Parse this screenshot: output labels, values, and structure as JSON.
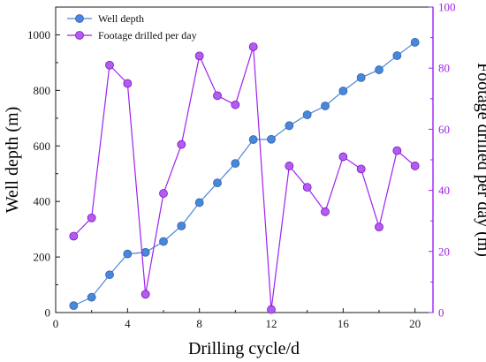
{
  "chart_data": {
    "type": "line",
    "title": "",
    "xlabel": "Drilling cycle/d",
    "ylabel_left": "Well depth (m)",
    "ylabel_right": "Footage drilled per day (m)",
    "xlim": [
      0,
      21
    ],
    "ylim_left": [
      0,
      1100
    ],
    "ylim_right": [
      0,
      100
    ],
    "xticks": [
      0,
      4,
      8,
      12,
      16,
      20
    ],
    "yticks_left": [
      0,
      200,
      400,
      600,
      800,
      1000
    ],
    "yticks_right": [
      0,
      20,
      40,
      60,
      80,
      100
    ],
    "grid": false,
    "legend_position": "top-left",
    "x": [
      1,
      2,
      3,
      4,
      5,
      6,
      7,
      8,
      9,
      10,
      11,
      12,
      13,
      14,
      15,
      16,
      17,
      18,
      19,
      20
    ],
    "series": [
      {
        "name": "Well depth",
        "axis": "left",
        "color": "#4a86d9",
        "values": [
          25,
          55,
          136,
          211,
          217,
          256,
          312,
          396,
          467,
          537,
          623,
          624,
          673,
          712,
          744,
          798,
          846,
          874,
          925,
          973
        ]
      },
      {
        "name": "Footage drilled per day",
        "axis": "right",
        "color": "#a020f0",
        "values": [
          25,
          31,
          81,
          75,
          6,
          39,
          55,
          84,
          71,
          68,
          87,
          1,
          48,
          41,
          33,
          51,
          47,
          28,
          53,
          48
        ]
      }
    ]
  }
}
